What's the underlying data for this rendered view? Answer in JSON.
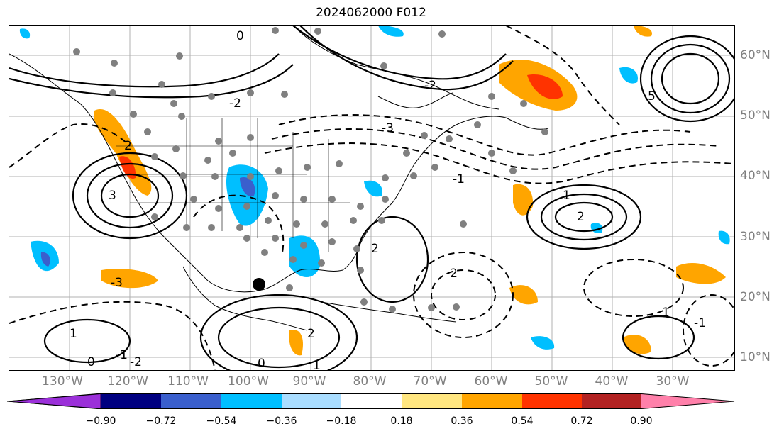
{
  "title": "2024062000 F012",
  "lon_labels": [
    "130°W",
    "120°W",
    "110°W",
    "100°W",
    "90°W",
    "80°W",
    "70°W",
    "60°W",
    "50°W",
    "40°W",
    "30°W"
  ],
  "lat_labels": [
    "60°N",
    "50°N",
    "40°N",
    "30°N",
    "20°N",
    "10°N"
  ],
  "colorbar": {
    "tick_labels": [
      "−0.90",
      "−0.72",
      "−0.54",
      "−0.36",
      "−0.18",
      "0.18",
      "0.36",
      "0.54",
      "0.72",
      "0.90"
    ],
    "colors": [
      "#9b30d9",
      "#000080",
      "#3a5fcd",
      "#00bfff",
      "#a9ddff",
      "#ffffff",
      "#ffe680",
      "#ffa500",
      "#ff3300",
      "#b22222",
      "#ff80aa"
    ]
  },
  "contour_labels": [
    "0",
    "-2",
    "2",
    "-3",
    "3",
    "-1",
    "1",
    "5",
    "-2",
    "2",
    "-3",
    "1",
    "-2",
    "-1",
    "0",
    "1",
    "-2",
    "2",
    "1",
    "-1",
    "0",
    "2"
  ]
}
